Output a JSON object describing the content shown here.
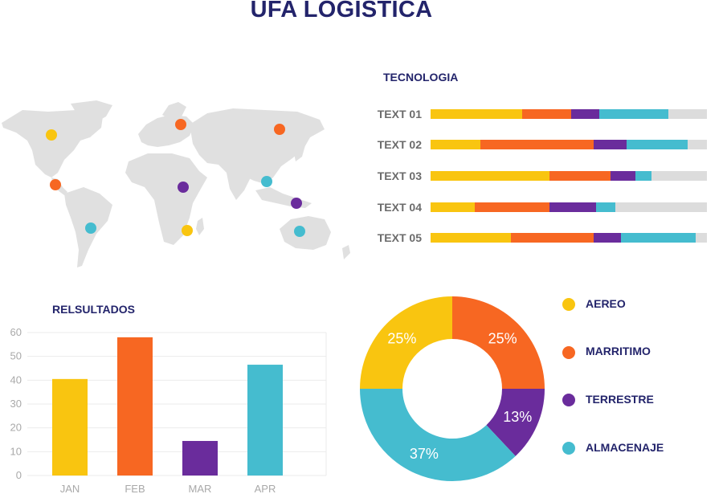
{
  "title": "UFA LOGISTICA",
  "colors": {
    "yellow": "#f9c510",
    "orange": "#f76722",
    "purple": "#6a2c9c",
    "teal": "#45bccf",
    "track": "#dcdcdc",
    "navy": "#23246b"
  },
  "chart_data": [
    {
      "type": "map",
      "markers": [
        {
          "region": "north-america",
          "color": "#f9c510"
        },
        {
          "region": "central-america",
          "color": "#f76722"
        },
        {
          "region": "south-america",
          "color": "#45bccf"
        },
        {
          "region": "europe",
          "color": "#f76722"
        },
        {
          "region": "africa",
          "color": "#6a2c9c"
        },
        {
          "region": "southern-africa",
          "color": "#f9c510"
        },
        {
          "region": "russia",
          "color": "#f76722"
        },
        {
          "region": "south-east-asia",
          "color": "#45bccf"
        },
        {
          "region": "indonesia",
          "color": "#6a2c9c"
        },
        {
          "region": "australia",
          "color": "#45bccf"
        }
      ]
    },
    {
      "type": "bar",
      "title": "TECNOLOGIA",
      "orientation": "horizontal-stacked",
      "categories": [
        "TEXT 01",
        "TEXT 02",
        "TEXT 03",
        "TEXT 04",
        "TEXT 05"
      ],
      "series": [
        {
          "color": "#f9c510",
          "values": [
            33,
            18,
            43,
            16,
            29
          ]
        },
        {
          "color": "#f76722",
          "values": [
            18,
            41,
            22,
            27,
            30
          ]
        },
        {
          "color": "#6a2c9c",
          "values": [
            10,
            12,
            9,
            17,
            10
          ]
        },
        {
          "color": "#45bccf",
          "values": [
            25,
            22,
            6,
            7,
            27
          ]
        }
      ],
      "xlim": [
        0,
        100
      ]
    },
    {
      "type": "bar",
      "title": "RELSULTADOS",
      "categories": [
        "JAN",
        "FEB",
        "MAR",
        "APR"
      ],
      "values": [
        40.5,
        58,
        14.5,
        46.5
      ],
      "colors": [
        "#f9c510",
        "#f76722",
        "#6a2c9c",
        "#45bccf"
      ],
      "ylim": [
        0,
        60
      ],
      "yticks": [
        0,
        10,
        20,
        30,
        40,
        50,
        60
      ],
      "grid": true
    },
    {
      "type": "pie",
      "donut": true,
      "categories": [
        "AEREO",
        "MARRITIMO",
        "TERRESTRE",
        "ALMACENAJE"
      ],
      "values": [
        25,
        25,
        13,
        37
      ],
      "labels": [
        "25%",
        "25%",
        "13%",
        "37%"
      ],
      "colors": [
        "#f9c510",
        "#f76722",
        "#6a2c9c",
        "#45bccf"
      ],
      "legend": "right"
    }
  ]
}
